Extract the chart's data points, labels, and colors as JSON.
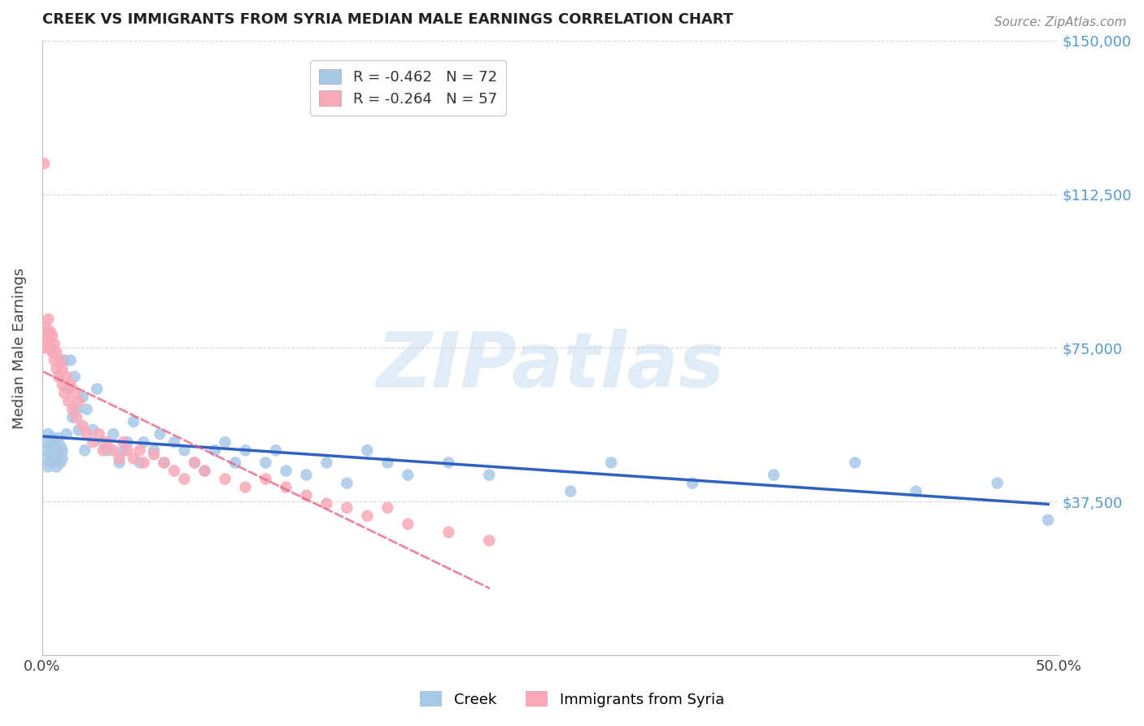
{
  "title": "CREEK VS IMMIGRANTS FROM SYRIA MEDIAN MALE EARNINGS CORRELATION CHART",
  "source": "Source: ZipAtlas.com",
  "ylabel": "Median Male Earnings",
  "xlim": [
    0.0,
    0.5
  ],
  "ylim": [
    0,
    150000
  ],
  "yticks": [
    0,
    37500,
    75000,
    112500,
    150000
  ],
  "ytick_labels": [
    "",
    "$37,500",
    "$75,000",
    "$112,500",
    "$150,000"
  ],
  "watermark": "ZIPatlas",
  "legend_entries": [
    {
      "label": "R = -0.462   N = 72",
      "color": "#a8c8e8"
    },
    {
      "label": "R = -0.264   N = 57",
      "color": "#f8a8b8"
    }
  ],
  "creek_color": "#a8c8e8",
  "syria_color": "#f8a8b8",
  "creek_line_color": "#3060c0",
  "syria_line_color": "#e06080",
  "background_color": "#ffffff",
  "grid_color": "#cccccc",
  "title_color": "#222222",
  "axis_label_color": "#444444",
  "right_label_color": "#5599cc",
  "creek_x": [
    0.001,
    0.002,
    0.002,
    0.003,
    0.003,
    0.004,
    0.004,
    0.005,
    0.005,
    0.005,
    0.006,
    0.006,
    0.007,
    0.007,
    0.008,
    0.008,
    0.009,
    0.009,
    0.01,
    0.01,
    0.011,
    0.012,
    0.013,
    0.014,
    0.015,
    0.016,
    0.017,
    0.018,
    0.02,
    0.021,
    0.022,
    0.025,
    0.027,
    0.03,
    0.032,
    0.035,
    0.038,
    0.04,
    0.042,
    0.045,
    0.048,
    0.05,
    0.055,
    0.058,
    0.06,
    0.065,
    0.07,
    0.075,
    0.08,
    0.085,
    0.09,
    0.095,
    0.1,
    0.11,
    0.115,
    0.12,
    0.13,
    0.14,
    0.15,
    0.16,
    0.17,
    0.18,
    0.2,
    0.22,
    0.26,
    0.28,
    0.32,
    0.36,
    0.4,
    0.43,
    0.47,
    0.495
  ],
  "creek_y": [
    50000,
    48000,
    52000,
    46000,
    54000,
    49000,
    51000,
    47000,
    53000,
    50000,
    48000,
    52000,
    46000,
    50000,
    49000,
    53000,
    47000,
    51000,
    50000,
    48000,
    72000,
    54000,
    65000,
    72000,
    58000,
    68000,
    60000,
    55000,
    63000,
    50000,
    60000,
    55000,
    65000,
    52000,
    50000,
    54000,
    47000,
    50000,
    52000,
    57000,
    47000,
    52000,
    50000,
    54000,
    47000,
    52000,
    50000,
    47000,
    45000,
    50000,
    52000,
    47000,
    50000,
    47000,
    50000,
    45000,
    44000,
    47000,
    42000,
    50000,
    47000,
    44000,
    47000,
    44000,
    40000,
    47000,
    42000,
    44000,
    47000,
    40000,
    42000,
    33000
  ],
  "syria_x": [
    0.001,
    0.001,
    0.002,
    0.002,
    0.003,
    0.003,
    0.004,
    0.004,
    0.005,
    0.005,
    0.006,
    0.006,
    0.007,
    0.007,
    0.008,
    0.009,
    0.01,
    0.01,
    0.011,
    0.012,
    0.013,
    0.014,
    0.015,
    0.016,
    0.017,
    0.018,
    0.02,
    0.022,
    0.025,
    0.028,
    0.03,
    0.032,
    0.035,
    0.038,
    0.04,
    0.042,
    0.045,
    0.048,
    0.05,
    0.055,
    0.06,
    0.065,
    0.07,
    0.075,
    0.08,
    0.09,
    0.1,
    0.11,
    0.12,
    0.13,
    0.14,
    0.15,
    0.16,
    0.17,
    0.18,
    0.2,
    0.22
  ],
  "syria_y": [
    120000,
    75000,
    80000,
    78000,
    77000,
    82000,
    75000,
    79000,
    74000,
    78000,
    72000,
    76000,
    70000,
    74000,
    68000,
    72000,
    66000,
    70000,
    64000,
    68000,
    62000,
    66000,
    60000,
    64000,
    58000,
    62000,
    56000,
    54000,
    52000,
    54000,
    50000,
    52000,
    50000,
    48000,
    52000,
    50000,
    48000,
    50000,
    47000,
    49000,
    47000,
    45000,
    43000,
    47000,
    45000,
    43000,
    41000,
    43000,
    41000,
    39000,
    37000,
    36000,
    34000,
    36000,
    32000,
    30000,
    28000
  ]
}
